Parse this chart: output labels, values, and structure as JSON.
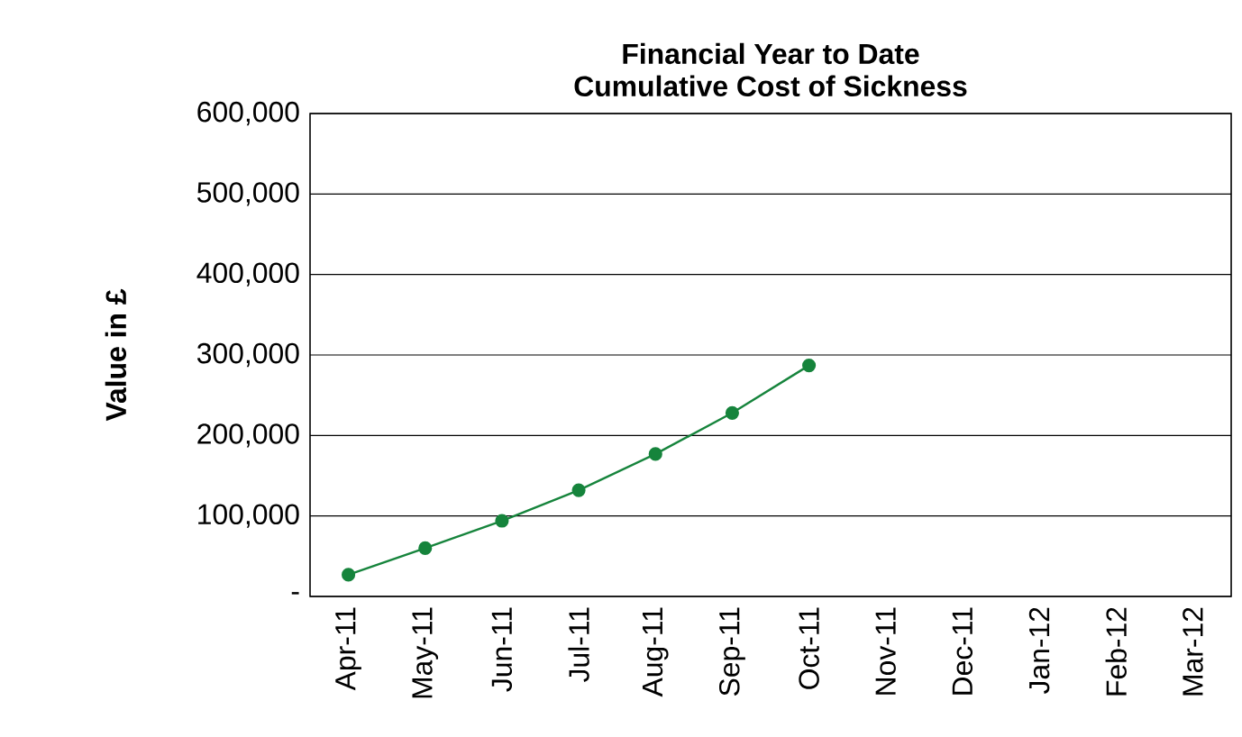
{
  "chart_data": {
    "type": "line",
    "title": "Financial Year to Date\nCumulative Cost of Sickness",
    "ylabel": "Value in £",
    "categories": [
      "Apr-11",
      "May-11",
      "Jun-11",
      "Jul-11",
      "Aug-11",
      "Sep-11",
      "Oct-11",
      "Nov-11",
      "Dec-11",
      "Jan-12",
      "Feb-12",
      "Mar-12"
    ],
    "series": [
      {
        "color": "#16843c",
        "values": [
          27000,
          60000,
          94000,
          132000,
          177000,
          228000,
          287000,
          null,
          null,
          null,
          null,
          null
        ]
      }
    ],
    "ylim": [
      0,
      600000
    ],
    "yticks": [
      {
        "value": 0,
        "label": "-"
      },
      {
        "value": 100000,
        "label": "100,000"
      },
      {
        "value": 200000,
        "label": "200,000"
      },
      {
        "value": 300000,
        "label": "300,000"
      },
      {
        "value": 400000,
        "label": "400,000"
      },
      {
        "value": 500000,
        "label": "500,000"
      },
      {
        "value": 600000,
        "label": "600,000"
      }
    ],
    "grid": "y",
    "marker": "circle",
    "line_style": "solid"
  }
}
